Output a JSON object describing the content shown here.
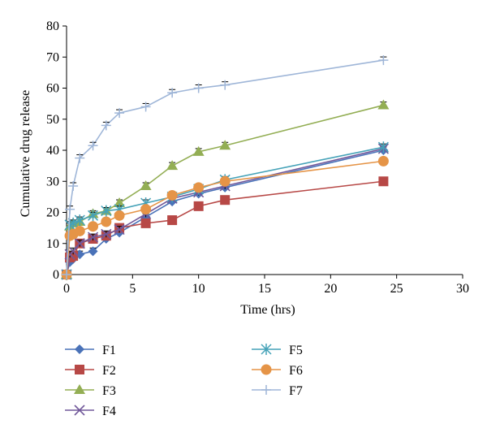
{
  "chart_data": {
    "type": "line",
    "title": "",
    "xlabel": "Time (hrs)",
    "ylabel": "Cumulative drug release",
    "xlim": [
      0,
      30
    ],
    "ylim": [
      0,
      80
    ],
    "xticks": [
      0,
      5,
      10,
      15,
      20,
      25,
      30
    ],
    "yticks": [
      0,
      10,
      20,
      30,
      40,
      50,
      60,
      70,
      80
    ],
    "x": [
      0,
      0.25,
      0.5,
      1,
      2,
      3,
      4,
      6,
      8,
      10,
      12,
      24
    ],
    "legend_position": "bottom",
    "series": [
      {
        "name": "F1",
        "color": "#4a72b8",
        "marker": "diamond",
        "values": [
          0,
          4,
          5,
          6.5,
          7.5,
          11.5,
          13.5,
          18.5,
          23.5,
          26,
          28,
          40
        ]
      },
      {
        "name": "F2",
        "color": "#b74846",
        "marker": "square",
        "values": [
          0,
          5.5,
          6,
          10,
          11.5,
          12.5,
          15,
          16.5,
          17.5,
          22,
          24,
          30
        ]
      },
      {
        "name": "F3",
        "color": "#93ae54",
        "marker": "triangle",
        "values": [
          0,
          15.5,
          16.5,
          17,
          19.5,
          20.5,
          23,
          28.5,
          35,
          39.5,
          41.5,
          54.5
        ]
      },
      {
        "name": "F4",
        "color": "#71589a",
        "marker": "x",
        "values": [
          0,
          6.5,
          7.5,
          10,
          12,
          13,
          14.5,
          19.5,
          24.5,
          26.5,
          28.5,
          40.5
        ]
      },
      {
        "name": "F5",
        "color": "#45a2b8",
        "marker": "asterisk",
        "values": [
          0,
          16,
          16.5,
          17.5,
          19,
          20.5,
          21,
          23,
          25,
          27.5,
          30.5,
          41
        ]
      },
      {
        "name": "F6",
        "color": "#e59447",
        "marker": "circle",
        "values": [
          0,
          12.5,
          13,
          14,
          15.5,
          17,
          19,
          21,
          25.5,
          28,
          30,
          36.5
        ]
      },
      {
        "name": "F7",
        "color": "#9fb6d8",
        "marker": "plus",
        "values": [
          0,
          21,
          28.5,
          37.5,
          41.5,
          48,
          52,
          54,
          58.5,
          60,
          61,
          69
        ]
      }
    ]
  }
}
